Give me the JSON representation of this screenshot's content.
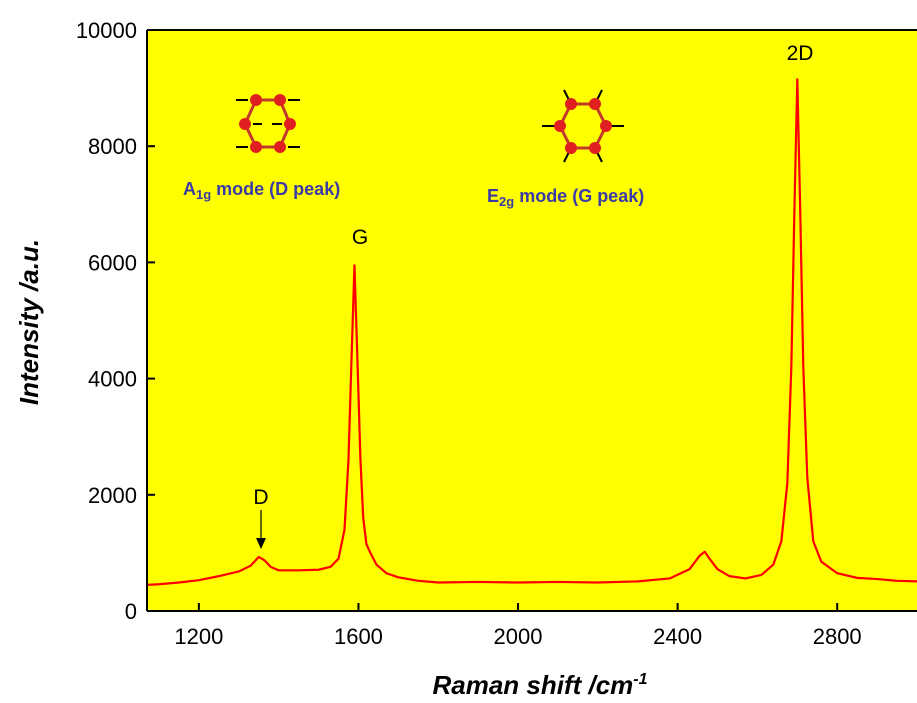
{
  "chart_data": {
    "type": "line",
    "xlabel": {
      "text": "Raman shift /cm",
      "superscript": "-1"
    },
    "ylabel": "Intensity /a.u.",
    "x": [
      1070,
      1100,
      1150,
      1200,
      1250,
      1300,
      1330,
      1350,
      1365,
      1380,
      1400,
      1450,
      1500,
      1530,
      1550,
      1565,
      1575,
      1582,
      1590,
      1598,
      1605,
      1612,
      1620,
      1630,
      1645,
      1670,
      1700,
      1750,
      1800,
      1900,
      2000,
      2100,
      2200,
      2300,
      2380,
      2430,
      2455,
      2468,
      2480,
      2500,
      2530,
      2570,
      2610,
      2640,
      2660,
      2675,
      2685,
      2693,
      2700,
      2707,
      2715,
      2725,
      2740,
      2760,
      2800,
      2850,
      2900,
      2950,
      3000
    ],
    "values": [
      450,
      460,
      490,
      530,
      600,
      680,
      780,
      930,
      870,
      760,
      700,
      700,
      710,
      760,
      900,
      1400,
      2600,
      4200,
      5950,
      4200,
      2600,
      1600,
      1150,
      1000,
      800,
      650,
      580,
      520,
      490,
      500,
      490,
      500,
      490,
      510,
      560,
      720,
      950,
      1020,
      900,
      720,
      600,
      560,
      620,
      800,
      1200,
      2200,
      4200,
      7000,
      9150,
      7000,
      4200,
      2300,
      1200,
      850,
      650,
      570,
      550,
      520,
      510
    ],
    "color": "#ff0000",
    "xlim": [
      1070,
      3000
    ],
    "ylim": [
      0,
      10000
    ],
    "xticks": [
      1200,
      1600,
      2000,
      2400,
      2800
    ],
    "yticks": [
      0,
      2000,
      4000,
      6000,
      8000,
      10000
    ],
    "background": "#ffff00",
    "annotations": [
      "D",
      "G",
      "2D"
    ],
    "mode_labels": [
      {
        "main": "A",
        "subscript": "1g",
        "text": " mode (D peak)"
      },
      {
        "main": "E",
        "subscript": "2g",
        "text": " mode (G peak)"
      }
    ]
  }
}
